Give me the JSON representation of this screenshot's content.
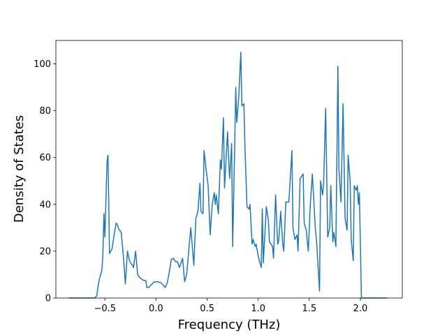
{
  "chart_data": {
    "type": "line",
    "xlabel": "Frequency (THz)",
    "ylabel": "Density of States",
    "x": [
      -0.855,
      -0.6,
      -0.58,
      -0.56,
      -0.53,
      -0.52,
      -0.51,
      -0.5,
      -0.48,
      -0.47,
      -0.455,
      -0.43,
      -0.41,
      -0.39,
      -0.38,
      -0.36,
      -0.34,
      -0.32,
      -0.3,
      -0.28,
      -0.26,
      -0.25,
      -0.23,
      -0.22,
      -0.2,
      -0.18,
      -0.165,
      -0.14,
      -0.12,
      -0.1,
      -0.09,
      -0.07,
      -0.04,
      -0.02,
      0.01,
      0.05,
      0.09,
      0.11,
      0.13,
      0.15,
      0.17,
      0.19,
      0.21,
      0.23,
      0.26,
      0.28,
      0.3,
      0.34,
      0.37,
      0.39,
      0.41,
      0.43,
      0.44,
      0.46,
      0.47,
      0.49,
      0.51,
      0.53,
      0.55,
      0.57,
      0.58,
      0.59,
      0.61,
      0.63,
      0.64,
      0.66,
      0.67,
      0.68,
      0.7,
      0.71,
      0.72,
      0.74,
      0.75,
      0.77,
      0.78,
      0.79,
      0.81,
      0.83,
      0.84,
      0.86,
      0.87,
      0.89,
      0.91,
      0.92,
      0.94,
      0.95,
      0.97,
      0.98,
      1.0,
      1.01,
      1.03,
      1.04,
      1.05,
      1.08,
      1.1,
      1.11,
      1.14,
      1.15,
      1.17,
      1.19,
      1.2,
      1.22,
      1.24,
      1.25,
      1.27,
      1.3,
      1.33,
      1.34,
      1.36,
      1.38,
      1.39,
      1.41,
      1.44,
      1.45,
      1.47,
      1.49,
      1.51,
      1.53,
      1.55,
      1.56,
      1.57,
      1.6,
      1.61,
      1.63,
      1.64,
      1.66,
      1.68,
      1.7,
      1.71,
      1.73,
      1.74,
      1.76,
      1.78,
      1.79,
      1.81,
      1.83,
      1.85,
      1.87,
      1.88,
      1.9,
      1.91,
      1.93,
      1.94,
      1.96,
      1.97,
      1.98,
      1.99,
      2.01,
      2.26
    ],
    "series": [
      {
        "color": "#1f77b4",
        "values": [
          0,
          0,
          1,
          7,
          12,
          18,
          36,
          26,
          58,
          61,
          19,
          21,
          27,
          32,
          31.5,
          29,
          28,
          18,
          6,
          20,
          16,
          15,
          14,
          13,
          20,
          10,
          9,
          8,
          7.5,
          7.5,
          4.5,
          4.5,
          6,
          6.8,
          7,
          6.5,
          4.5,
          6.5,
          11,
          16.5,
          17,
          15.5,
          15.5,
          13,
          17,
          7,
          10,
          30,
          14,
          34,
          37,
          49,
          37,
          36,
          63,
          55,
          48,
          27,
          40,
          45,
          40,
          44,
          36,
          59,
          55,
          77,
          47,
          55,
          71,
          60,
          51,
          66,
          22,
          65,
          90,
          75,
          86,
          105,
          82,
          83,
          65,
          39,
          38,
          40,
          23,
          25,
          22,
          23,
          18,
          16,
          13,
          38,
          15,
          39,
          33,
          24,
          22,
          17,
          44,
          23,
          24,
          37,
          23,
          20,
          41,
          41,
          63,
          30,
          25,
          27,
          20,
          51,
          53,
          32,
          29,
          20,
          40,
          53,
          37,
          29,
          25,
          3,
          50,
          44,
          49,
          81,
          26,
          30,
          48,
          24,
          28,
          22,
          99,
          55,
          41,
          83,
          34,
          29,
          61,
          50,
          25,
          16,
          48,
          46,
          48,
          40,
          45,
          0,
          0
        ]
      }
    ],
    "xlim": [
      -0.98,
      2.41
    ],
    "ylim": [
      0,
      110
    ],
    "xticks": [
      {
        "value": -0.5,
        "label": "−0.5"
      },
      {
        "value": 0,
        "label": "0.0"
      },
      {
        "value": 0.5,
        "label": "0.5"
      },
      {
        "value": 1,
        "label": "1.0"
      },
      {
        "value": 1.5,
        "label": "1.5"
      },
      {
        "value": 2,
        "label": "2.0"
      }
    ],
    "yticks": [
      0,
      20,
      40,
      60,
      80,
      100
    ]
  }
}
